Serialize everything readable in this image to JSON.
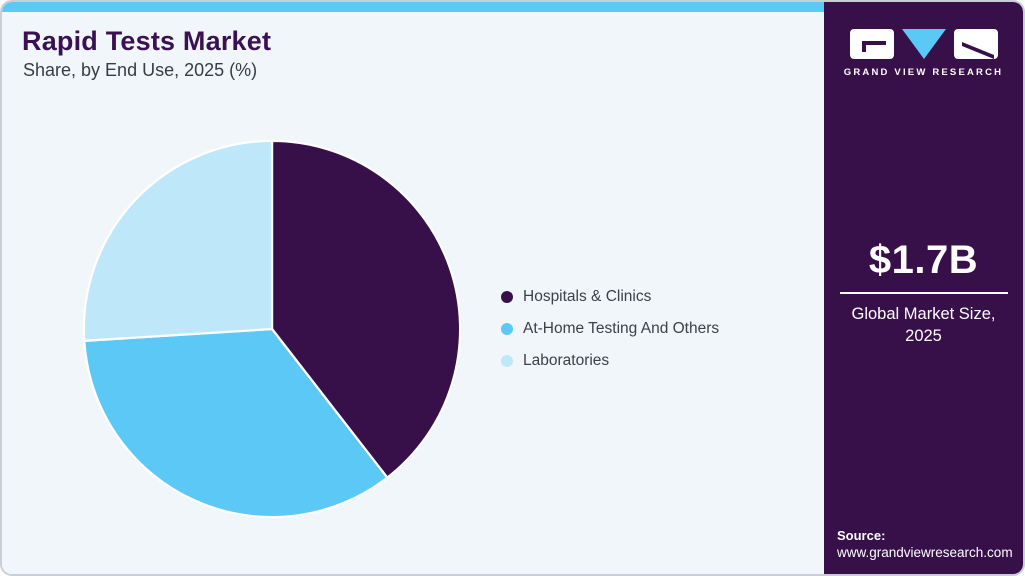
{
  "header": {
    "title": "Rapid Tests Market",
    "subtitle": "Share, by End Use, 2025 (%)"
  },
  "chart_data": {
    "type": "pie",
    "title": "Rapid Tests Market Share, by End Use, 2025 (%)",
    "units": "%",
    "direction": "clockwise",
    "start_angle_deg": 0,
    "legend_position": "right",
    "slices": [
      {
        "label": "Hospitals & Clinics",
        "value": 39.5,
        "color": "#37104a"
      },
      {
        "label": "At-Home Testing And Others",
        "value": 34.5,
        "color": "#5bc8f5"
      },
      {
        "label": "Laboratories",
        "value": 26.0,
        "color": "#bee8fa"
      }
    ]
  },
  "sidebar": {
    "logo_caption": "GRAND VIEW RESEARCH",
    "market_size_value": "$1.7B",
    "market_size_label_line1": "Global Market Size,",
    "market_size_label_line2": "2025",
    "source_label": "Source:",
    "source_url": "www.grandviewresearch.com"
  },
  "colors": {
    "accent_bar": "#5bc8f5",
    "sidebar_bg": "#37104a",
    "panel_bg": "#f0f6fa",
    "title_text": "#3a1152",
    "body_text": "#3f3f46",
    "card_border": "#c9cfd6",
    "slice_stroke": "#ffffff"
  }
}
